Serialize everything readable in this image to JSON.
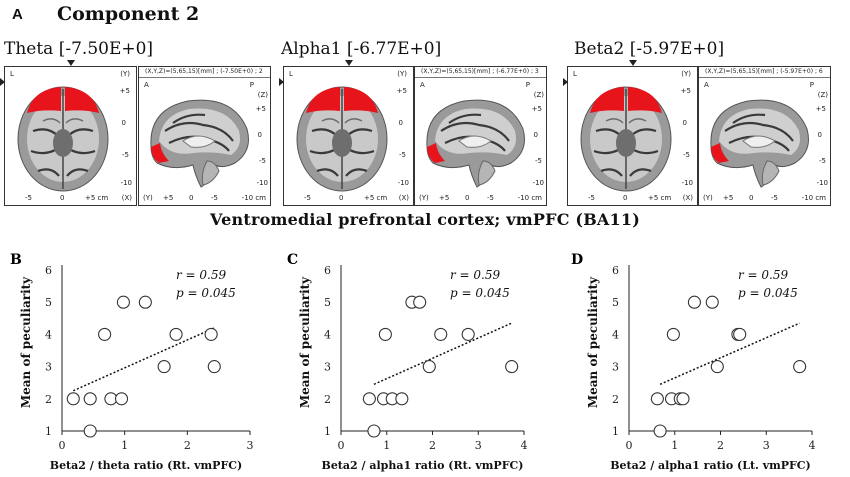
{
  "panel_a": {
    "letter": "A",
    "title": "Component 2",
    "region": "Ventromedial prefrontal cortex; vmPFC (BA11)",
    "views": [
      {
        "band": "Theta",
        "value": "[-7.50E+0]",
        "axial_header": "L",
        "axial_y": "(Y)",
        "sag_header": "(X,Y,Z)=(5,65,15)[mm] ; (-7.50E+0) ; 2",
        "sag_a": "A",
        "sag_p": "P",
        "sag_z": "(Z)",
        "axial_ticks": [
          "+5",
          "0",
          "-5",
          "-10"
        ],
        "axial_bottom": [
          "-5",
          "0",
          "+5 cm",
          "(X)"
        ],
        "sag_ticks": [
          "+5",
          "0",
          "-5",
          "-10"
        ],
        "sag_bottom": [
          "(Y)",
          "+5",
          "0",
          "-5",
          "-10 cm"
        ]
      },
      {
        "band": "Alpha1",
        "value": "[-6.77E+0]",
        "axial_header": "L",
        "axial_y": "(Y)",
        "sag_header": "(X,Y,Z)=(5,65,15)[mm] ; (-6.77E+0) ; 3",
        "sag_a": "A",
        "sag_p": "P",
        "sag_z": "(Z)",
        "axial_ticks": [
          "+5",
          "0",
          "-5",
          "-10"
        ],
        "axial_bottom": [
          "-5",
          "0",
          "+5 cm",
          "(X)"
        ],
        "sag_ticks": [
          "+5",
          "0",
          "-5",
          "-10"
        ],
        "sag_bottom": [
          "(Y)",
          "+5",
          "0",
          "-5",
          "-10 cm"
        ]
      },
      {
        "band": "Beta2",
        "value": "[-5.97E+0]",
        "axial_header": "L",
        "axial_y": "(Y)",
        "sag_header": "(X,Y,Z)=(5,65,15)[mm] ; (-5.97E+0) ; 6",
        "sag_a": "A",
        "sag_p": "P",
        "sag_z": "(Z)",
        "axial_ticks": [
          "+5",
          "0",
          "-5",
          "-10"
        ],
        "axial_bottom": [
          "-5",
          "0",
          "+5 cm",
          "(X)"
        ],
        "sag_ticks": [
          "+5",
          "0",
          "-5",
          "-10"
        ],
        "sag_bottom": [
          "(Y)",
          "+5",
          "0",
          "-5",
          "-10 cm"
        ]
      }
    ],
    "colors": {
      "activation": "#e8141b",
      "brain_gray": "#9a9a9a",
      "brain_dark": "#3a3a3a"
    }
  },
  "chart_data": [
    {
      "letter": "B",
      "type": "scatter",
      "xlabel": "Beta2 / theta ratio (Rt. vmPFC)",
      "ylabel": "Mean of peculiarity",
      "xlim": [
        0,
        3
      ],
      "ylim": [
        1,
        6
      ],
      "xticks": [
        "0",
        "1",
        "2",
        "3"
      ],
      "yticks": [
        "1",
        "2",
        "3",
        "4",
        "5",
        "6"
      ],
      "annotation_r": "r = 0.59",
      "annotation_p": "p = 0.045",
      "points": [
        {
          "x": 0.18,
          "y": 2
        },
        {
          "x": 0.45,
          "y": 1
        },
        {
          "x": 0.45,
          "y": 2
        },
        {
          "x": 0.68,
          "y": 4
        },
        {
          "x": 0.78,
          "y": 2
        },
        {
          "x": 0.95,
          "y": 2
        },
        {
          "x": 0.98,
          "y": 5
        },
        {
          "x": 1.33,
          "y": 5
        },
        {
          "x": 1.63,
          "y": 3
        },
        {
          "x": 1.82,
          "y": 4
        },
        {
          "x": 2.38,
          "y": 4
        },
        {
          "x": 2.43,
          "y": 3
        }
      ],
      "trend": {
        "x0": 0.18,
        "y0": 2.25,
        "x1": 2.43,
        "y1": 4.2
      },
      "colors": {
        "marker_edge": "#333333",
        "trend": "#111111"
      }
    },
    {
      "letter": "C",
      "type": "scatter",
      "xlabel": "Beta2 / alpha1 ratio (Rt. vmPFC)",
      "ylabel": "Mean of peculiarity",
      "xlim": [
        0,
        4
      ],
      "ylim": [
        1,
        6
      ],
      "xticks": [
        "0",
        "1",
        "2",
        "3",
        "4"
      ],
      "yticks": [
        "1",
        "2",
        "3",
        "4",
        "5",
        "6"
      ],
      "annotation_r": "r = 0.59",
      "annotation_p": "p = 0.045",
      "points": [
        {
          "x": 0.62,
          "y": 2
        },
        {
          "x": 0.72,
          "y": 1
        },
        {
          "x": 0.93,
          "y": 2
        },
        {
          "x": 0.97,
          "y": 4
        },
        {
          "x": 1.12,
          "y": 2
        },
        {
          "x": 1.33,
          "y": 2
        },
        {
          "x": 1.55,
          "y": 5
        },
        {
          "x": 1.72,
          "y": 5
        },
        {
          "x": 1.93,
          "y": 3
        },
        {
          "x": 2.18,
          "y": 4
        },
        {
          "x": 2.78,
          "y": 4
        },
        {
          "x": 3.73,
          "y": 3
        }
      ],
      "trend": {
        "x0": 0.72,
        "y0": 2.45,
        "x1": 3.73,
        "y1": 4.35
      },
      "colors": {
        "marker_edge": "#333333",
        "trend": "#111111"
      }
    },
    {
      "letter": "D",
      "type": "scatter",
      "xlabel": "Beta2 / alpha1 ratio (Lt. vmPFC)",
      "ylabel": "Mean of peculiarity",
      "xlim": [
        0,
        4
      ],
      "ylim": [
        1,
        6
      ],
      "xticks": [
        "0",
        "1",
        "2",
        "3",
        "4"
      ],
      "yticks": [
        "1",
        "2",
        "3",
        "4",
        "5",
        "6"
      ],
      "annotation_r": "r = 0.59",
      "annotation_p": "p = 0.045",
      "points": [
        {
          "x": 0.62,
          "y": 2
        },
        {
          "x": 0.68,
          "y": 1
        },
        {
          "x": 0.93,
          "y": 2
        },
        {
          "x": 0.97,
          "y": 4
        },
        {
          "x": 1.12,
          "y": 2
        },
        {
          "x": 1.18,
          "y": 2
        },
        {
          "x": 1.43,
          "y": 5
        },
        {
          "x": 1.82,
          "y": 5
        },
        {
          "x": 1.93,
          "y": 3
        },
        {
          "x": 2.38,
          "y": 4
        },
        {
          "x": 2.42,
          "y": 4
        },
        {
          "x": 3.73,
          "y": 3
        }
      ],
      "trend": {
        "x0": 0.68,
        "y0": 2.45,
        "x1": 3.73,
        "y1": 4.35
      },
      "colors": {
        "marker_edge": "#333333",
        "trend": "#111111"
      }
    }
  ]
}
